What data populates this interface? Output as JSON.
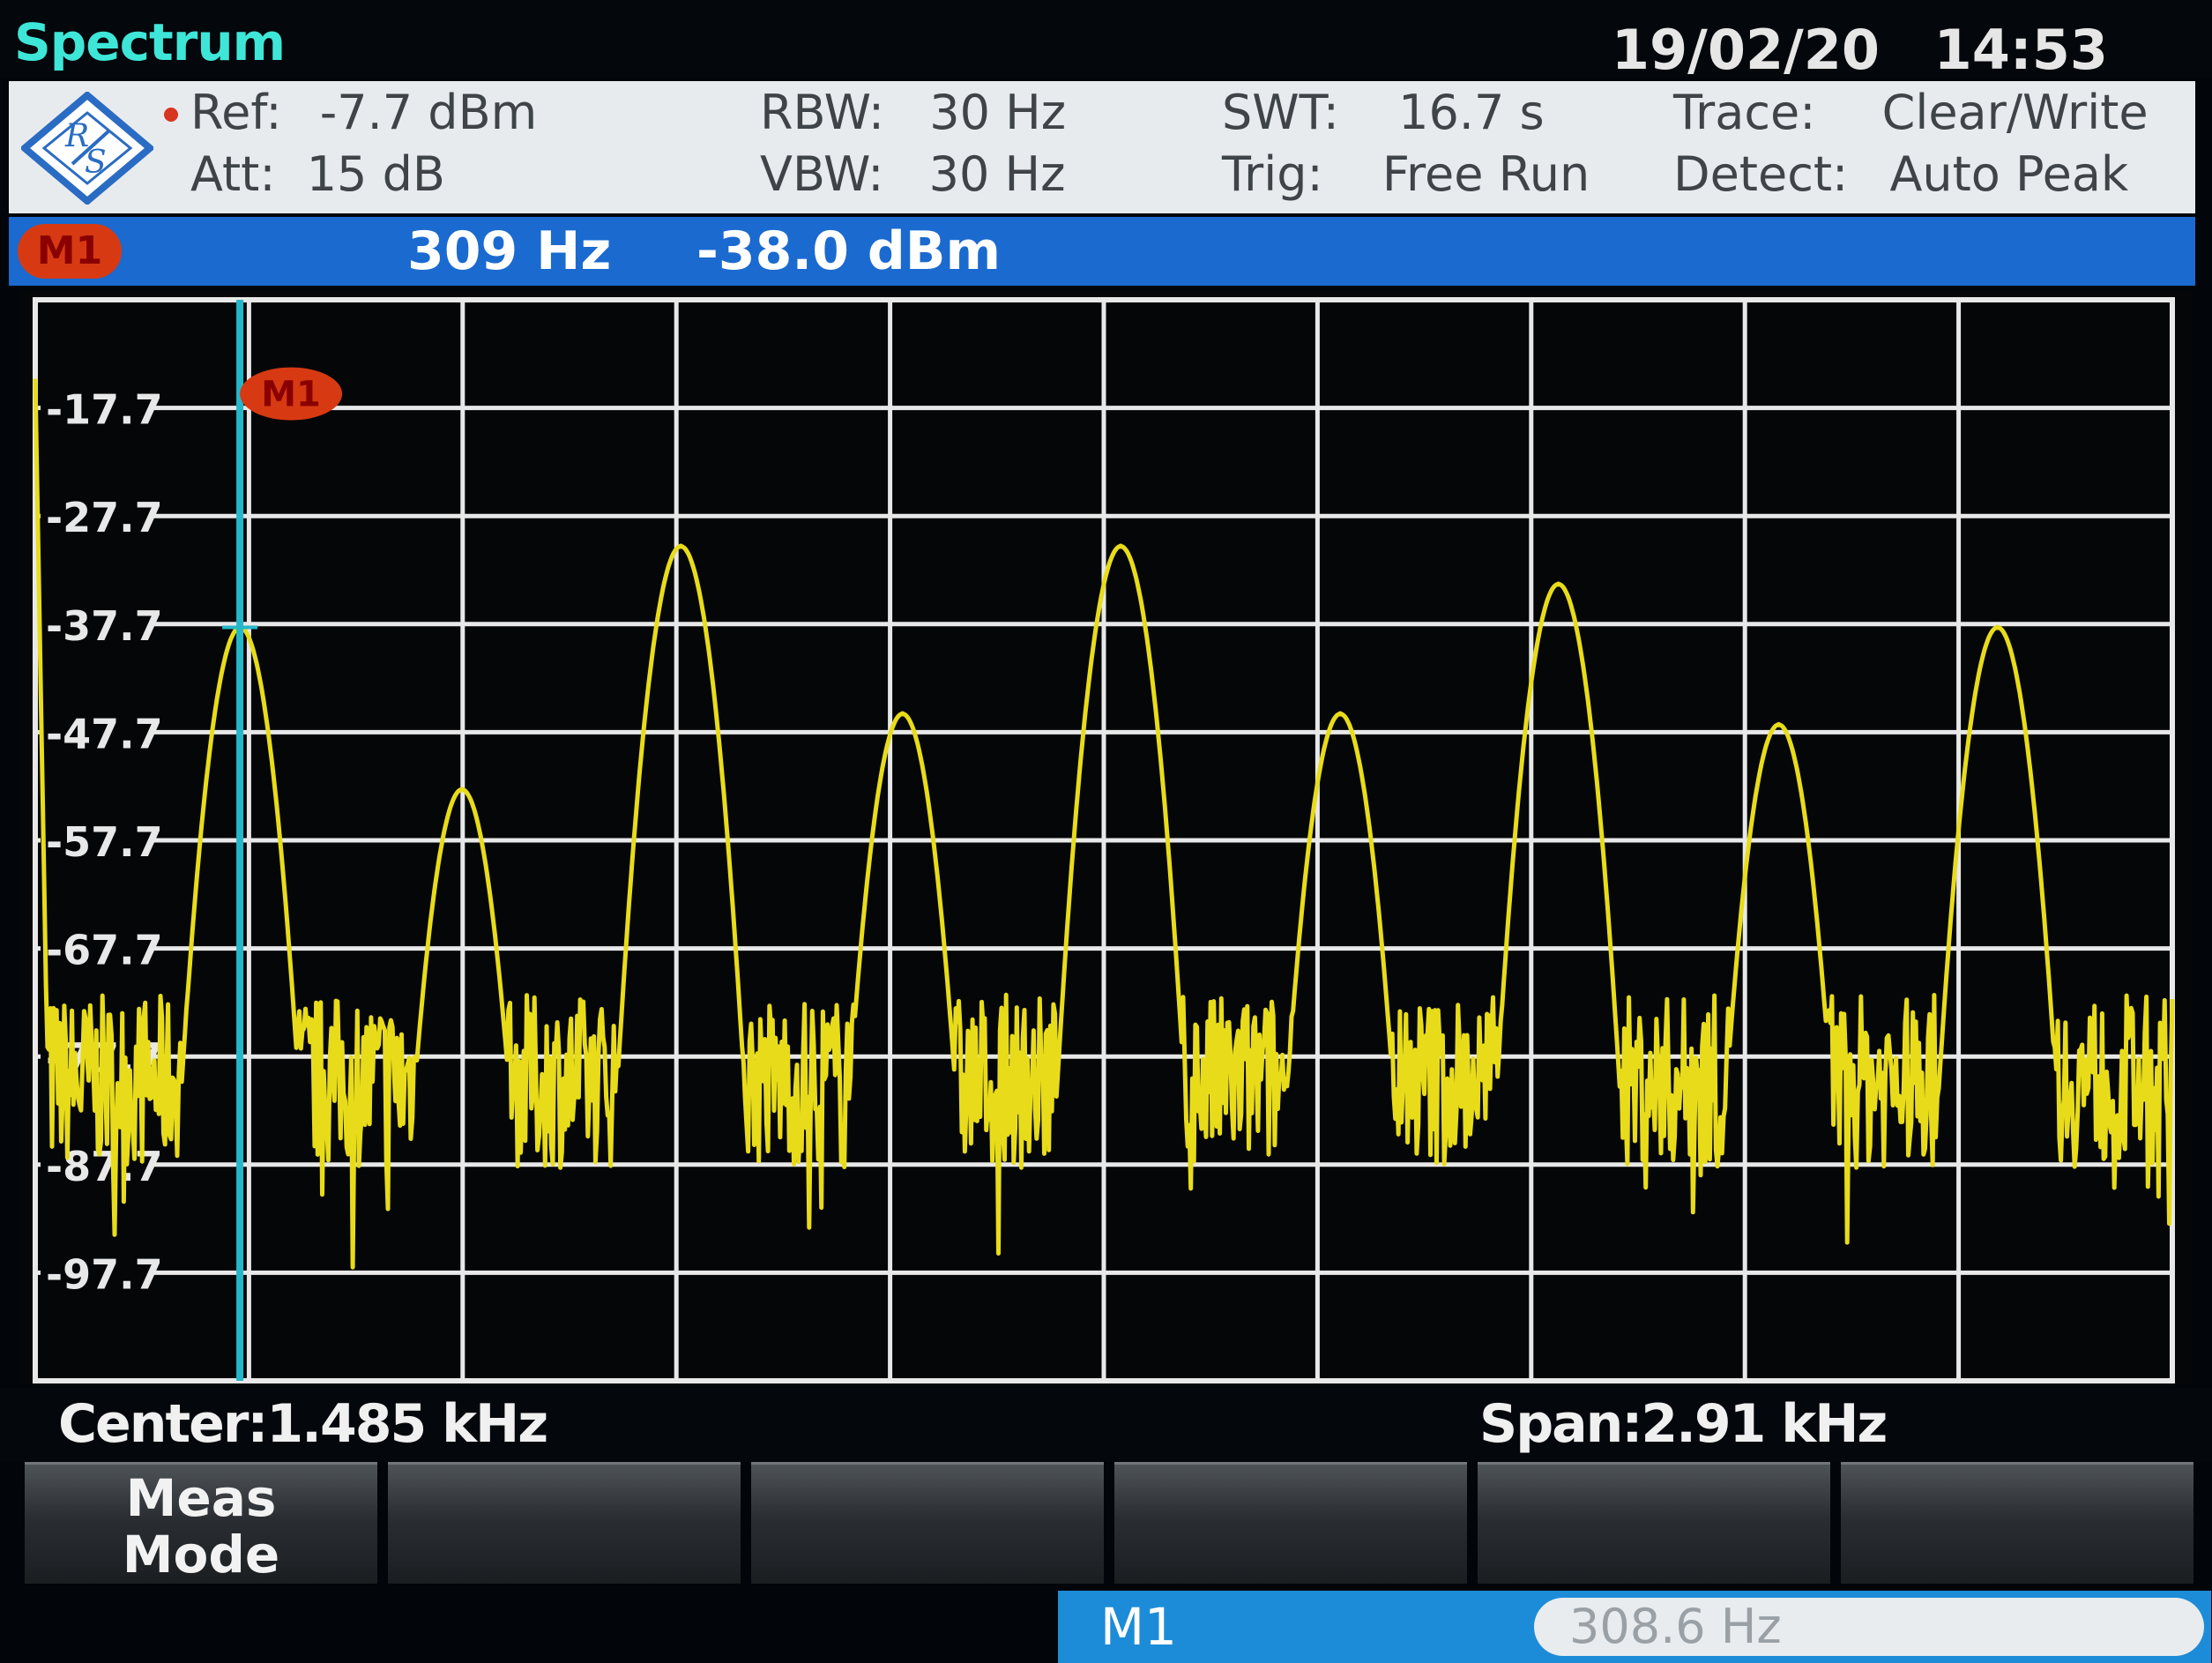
{
  "header": {
    "title": "Spectrum",
    "date": "19/02/20",
    "time": "14:53"
  },
  "settings": {
    "ref_label": "Ref:",
    "ref_value": "-7.7 dBm",
    "att_label": "Att:",
    "att_value": "15 dB",
    "rbw_label": "RBW:",
    "rbw_value": "30 Hz",
    "vbw_label": "VBW:",
    "vbw_value": "30 Hz",
    "swt_label": "SWT:",
    "swt_value": "16.7 s",
    "trig_label": "Trig:",
    "trig_value": "Free Run",
    "trace_label": "Trace:",
    "trace_value": "Clear/Write",
    "detect_label": "Detect:",
    "detect_value": "Auto Peak"
  },
  "marker_bar": {
    "badge": "M1",
    "frequency": "309 Hz",
    "level": "-38.0 dBm"
  },
  "plot": {
    "marker_label": "M1",
    "readout_label": "M1",
    "readout_value": "308.6 Hz",
    "trace_color": "#e8dc1a",
    "marker_line_color": "#25b7c9",
    "grid_color": "#e8e8e8"
  },
  "footer": {
    "center": "Center:1.485 kHz",
    "span": "Span:2.91 kHz"
  },
  "softkeys": [
    "Meas\nMode",
    "",
    "",
    "",
    "",
    ""
  ],
  "chart_data": {
    "type": "line",
    "x_unit": "Hz",
    "y_unit": "dBm",
    "xlim": [
      30,
      2940
    ],
    "ylim": [
      -107.7,
      -7.7
    ],
    "ytick_labels": [
      "-17.7",
      "-27.7",
      "-37.7",
      "-47.7",
      "-57.7",
      "-67.7",
      "-77.7",
      "-87.7",
      "-97.7"
    ],
    "grid": true,
    "noise_floor_dbm": -80,
    "peaks": [
      {
        "x": 309,
        "y": -38
      },
      {
        "x": 611,
        "y": -53
      },
      {
        "x": 909,
        "y": -30.5
      },
      {
        "x": 1211,
        "y": -46
      },
      {
        "x": 1508,
        "y": -30.5
      },
      {
        "x": 1807,
        "y": -46
      },
      {
        "x": 2104,
        "y": -34
      },
      {
        "x": 2404,
        "y": -47
      },
      {
        "x": 2702,
        "y": -38
      }
    ],
    "marker": {
      "name": "M1",
      "x": 308.6,
      "y": -38.0
    }
  }
}
